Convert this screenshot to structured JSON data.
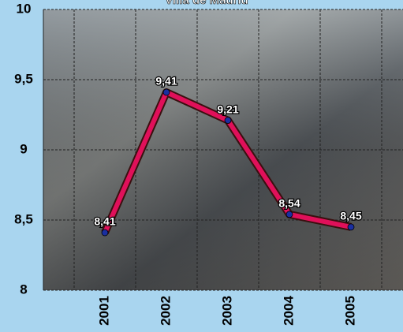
{
  "chart_data": {
    "type": "line",
    "title": "Villa de Madrid",
    "categories": [
      "2001",
      "2002",
      "2003",
      "2004",
      "2005"
    ],
    "values": [
      8.41,
      9.41,
      9.21,
      8.54,
      8.45
    ],
    "value_labels": [
      "8,41",
      "9,41",
      "9,21",
      "8,54",
      "8,45"
    ],
    "color": "#e0105a",
    "ylim": [
      8,
      10
    ],
    "yticks": [
      8,
      {
        "value": 8.5,
        "label": "8,5"
      },
      9,
      {
        "value": 9.5,
        "label": "9,5"
      },
      10
    ],
    "grid": true
  }
}
